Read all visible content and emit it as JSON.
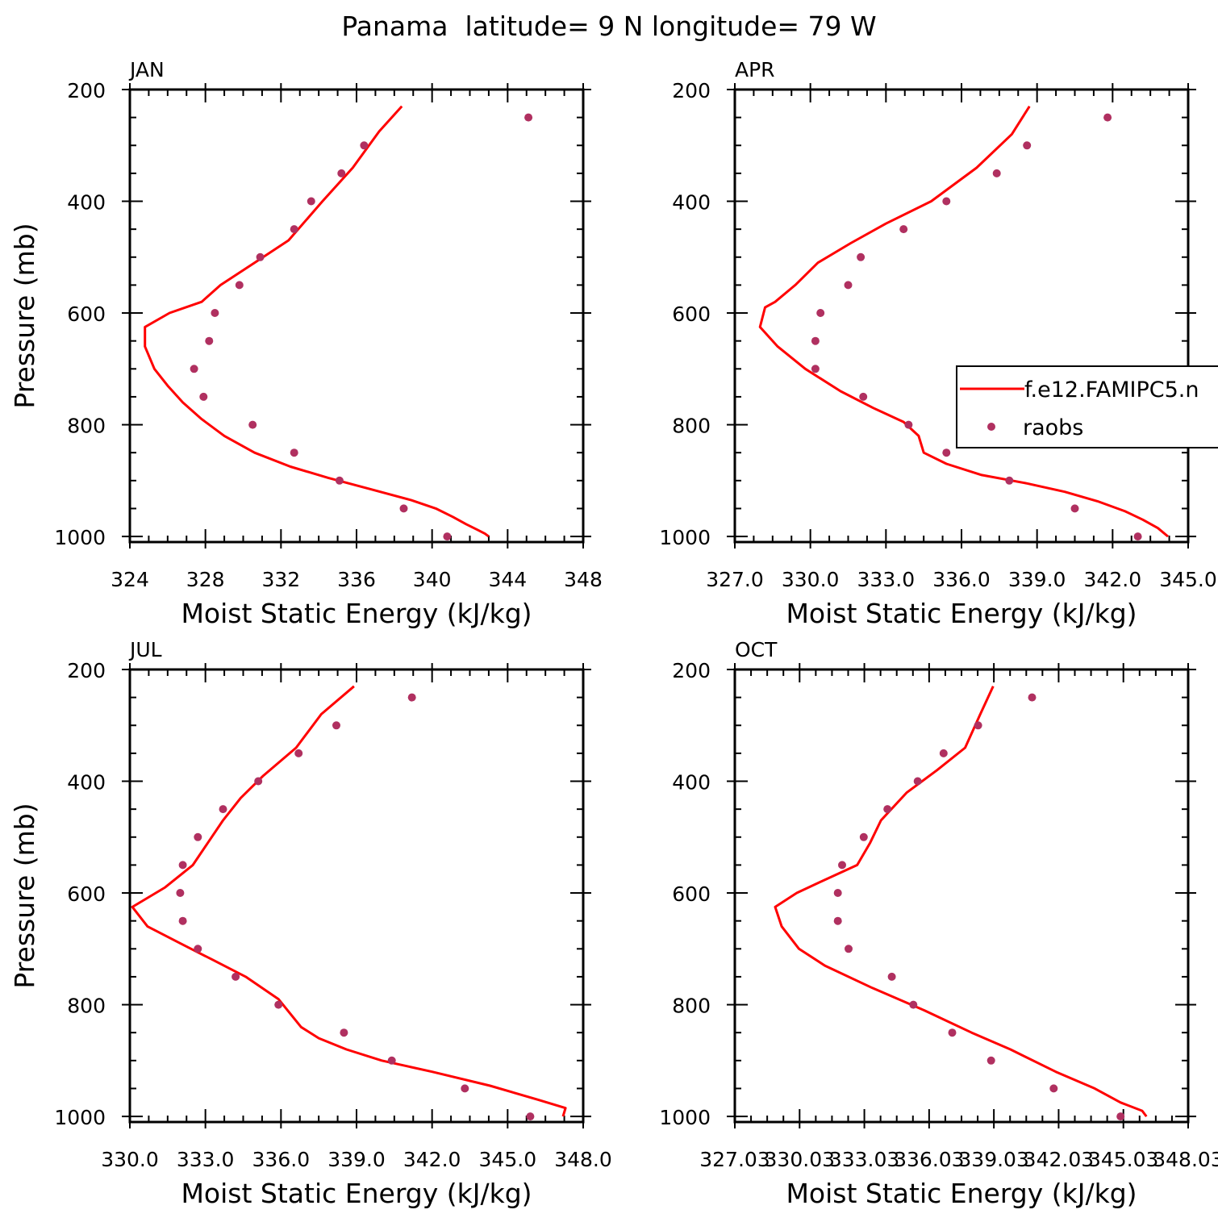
{
  "figure_title": "Panama  latitude= 9 N longitude= 79 W",
  "legend": {
    "model_label": "f.e12.FAMIPC5.n",
    "obs_label": "raobs"
  },
  "colors": {
    "model_line": "#ff0000",
    "obs_marker": "#b03060",
    "axes": "#000000"
  },
  "chart_data": [
    {
      "type": "line",
      "title": "JAN",
      "xlabel": "Moist Static Energy (kJ/kg)",
      "ylabel": "Pressure (mb)",
      "xlim": [
        324,
        348
      ],
      "ylim": [
        200,
        1010
      ],
      "y_inverted": true,
      "xticks": [
        "324",
        "328",
        "332",
        "336",
        "340",
        "344",
        "348"
      ],
      "yticks": [
        "200",
        "400",
        "600",
        "800",
        "1000"
      ],
      "series": [
        {
          "name": "f.e12.FAMIPC5.n",
          "kind": "line",
          "x": [
            338.4,
            337.2,
            335.8,
            334.2,
            332.4,
            330.6,
            328.8,
            327.8,
            326.1,
            324.8,
            324.8,
            325.3,
            326.0,
            326.8,
            327.8,
            329.0,
            330.6,
            332.5,
            334.5,
            336.7,
            338.9,
            340.2,
            341.1,
            341.8,
            342.4,
            342.8,
            343.0
          ],
          "y": [
            230,
            275,
            340,
            400,
            470,
            510,
            550,
            580,
            600,
            625,
            660,
            700,
            730,
            760,
            790,
            820,
            850,
            875,
            895,
            915,
            935,
            950,
            965,
            978,
            988,
            995,
            1000
          ]
        },
        {
          "name": "raobs",
          "kind": "points",
          "x": [
            345.1,
            336.4,
            335.2,
            333.6,
            332.7,
            330.9,
            329.8,
            328.5,
            328.2,
            327.4,
            327.9,
            330.5,
            332.7,
            335.1,
            338.5,
            340.8
          ],
          "y": [
            250,
            300,
            350,
            400,
            450,
            500,
            550,
            600,
            650,
            700,
            750,
            800,
            850,
            900,
            950,
            1000
          ]
        }
      ]
    },
    {
      "type": "line",
      "title": "APR",
      "xlabel": "Moist Static Energy (kJ/kg)",
      "ylabel": "",
      "xlim": [
        327.0,
        345.0
      ],
      "ylim": [
        200,
        1010
      ],
      "y_inverted": true,
      "xticks": [
        "327.0",
        "330.0",
        "333.0",
        "336.0",
        "339.0",
        "342.0",
        "345.0"
      ],
      "yticks": [
        "200",
        "400",
        "600",
        "800",
        "1000"
      ],
      "series": [
        {
          "name": "f.e12.FAMIPC5.n",
          "kind": "line",
          "x": [
            338.7,
            338.0,
            336.6,
            334.8,
            333.0,
            331.6,
            330.3,
            329.4,
            328.6,
            328.2,
            328.0,
            328.7,
            329.8,
            331.2,
            332.5,
            333.7,
            334.3,
            334.5,
            335.4,
            336.8,
            338.6,
            340.1,
            341.4,
            342.5,
            343.2,
            343.8,
            344.2
          ],
          "y": [
            230,
            280,
            340,
            400,
            440,
            475,
            510,
            550,
            580,
            590,
            625,
            660,
            700,
            740,
            770,
            795,
            820,
            850,
            870,
            890,
            905,
            920,
            937,
            955,
            970,
            985,
            1000
          ]
        },
        {
          "name": "raobs",
          "kind": "points",
          "x": [
            341.8,
            338.6,
            337.4,
            335.4,
            333.7,
            332.0,
            331.5,
            330.4,
            330.2,
            330.2,
            332.1,
            333.9,
            335.4,
            337.9,
            340.5,
            343.0
          ],
          "y": [
            250,
            300,
            350,
            400,
            450,
            500,
            550,
            600,
            650,
            700,
            750,
            800,
            850,
            900,
            950,
            1000
          ]
        }
      ]
    },
    {
      "type": "line",
      "title": "JUL",
      "xlabel": "Moist Static Energy (kJ/kg)",
      "ylabel": "Pressure (mb)",
      "xlim": [
        330.0,
        348.0
      ],
      "ylim": [
        200,
        1010
      ],
      "y_inverted": true,
      "xticks": [
        "330.0",
        "333.0",
        "336.0",
        "339.0",
        "342.0",
        "345.0",
        "348.0"
      ],
      "yticks": [
        "200",
        "400",
        "600",
        "800",
        "1000"
      ],
      "series": [
        {
          "name": "f.e12.FAMIPC5.n",
          "kind": "line",
          "x": [
            338.9,
            337.6,
            336.6,
            335.3,
            334.4,
            333.7,
            333.1,
            332.5,
            331.4,
            330.1,
            330.7,
            332.0,
            333.3,
            334.6,
            335.9,
            336.8,
            337.5,
            338.6,
            340.0,
            342.0,
            344.3,
            346.2,
            347.3,
            347.2
          ],
          "y": [
            230,
            280,
            340,
            390,
            430,
            470,
            510,
            550,
            590,
            625,
            660,
            690,
            720,
            750,
            790,
            840,
            860,
            880,
            900,
            920,
            945,
            970,
            985,
            1000
          ]
        },
        {
          "name": "raobs",
          "kind": "points",
          "x": [
            341.2,
            338.2,
            336.7,
            335.1,
            333.7,
            332.7,
            332.1,
            332.0,
            332.1,
            332.7,
            334.2,
            335.9,
            338.5,
            340.4,
            343.3,
            345.9
          ],
          "y": [
            250,
            300,
            350,
            400,
            450,
            500,
            550,
            600,
            650,
            700,
            750,
            800,
            850,
            900,
            950,
            1000
          ]
        }
      ]
    },
    {
      "type": "line",
      "title": "OCT",
      "xlabel": "Moist Static Energy (kJ/kg)",
      "ylabel": "",
      "xlim": [
        327.03,
        348.03
      ],
      "ylim": [
        200,
        1010
      ],
      "y_inverted": true,
      "xticks": [
        "327.03",
        "330.03",
        "333.03",
        "336.03",
        "339.03",
        "342.03",
        "345.03",
        "348.03"
      ],
      "yticks": [
        "200",
        "400",
        "600",
        "800",
        "1000"
      ],
      "series": [
        {
          "name": "f.e12.FAMIPC5.n",
          "kind": "line",
          "x": [
            339.0,
            338.4,
            337.7,
            336.4,
            335.0,
            333.8,
            333.3,
            332.7,
            331.0,
            329.9,
            328.9,
            329.2,
            330.0,
            331.2,
            333.4,
            335.8,
            338.0,
            339.8,
            341.9,
            343.7,
            344.9,
            345.9,
            346.1
          ],
          "y": [
            230,
            280,
            340,
            380,
            420,
            470,
            510,
            550,
            580,
            600,
            625,
            660,
            700,
            730,
            770,
            810,
            850,
            880,
            920,
            950,
            975,
            990,
            1000
          ]
        },
        {
          "name": "raobs",
          "kind": "points",
          "x": [
            340.8,
            338.3,
            336.7,
            335.5,
            334.1,
            333.0,
            332.0,
            331.8,
            331.8,
            332.3,
            334.3,
            335.3,
            337.1,
            338.9,
            341.8,
            344.9
          ],
          "y": [
            250,
            300,
            350,
            400,
            450,
            500,
            550,
            600,
            650,
            700,
            750,
            800,
            850,
            900,
            950,
            1000
          ]
        }
      ]
    }
  ]
}
